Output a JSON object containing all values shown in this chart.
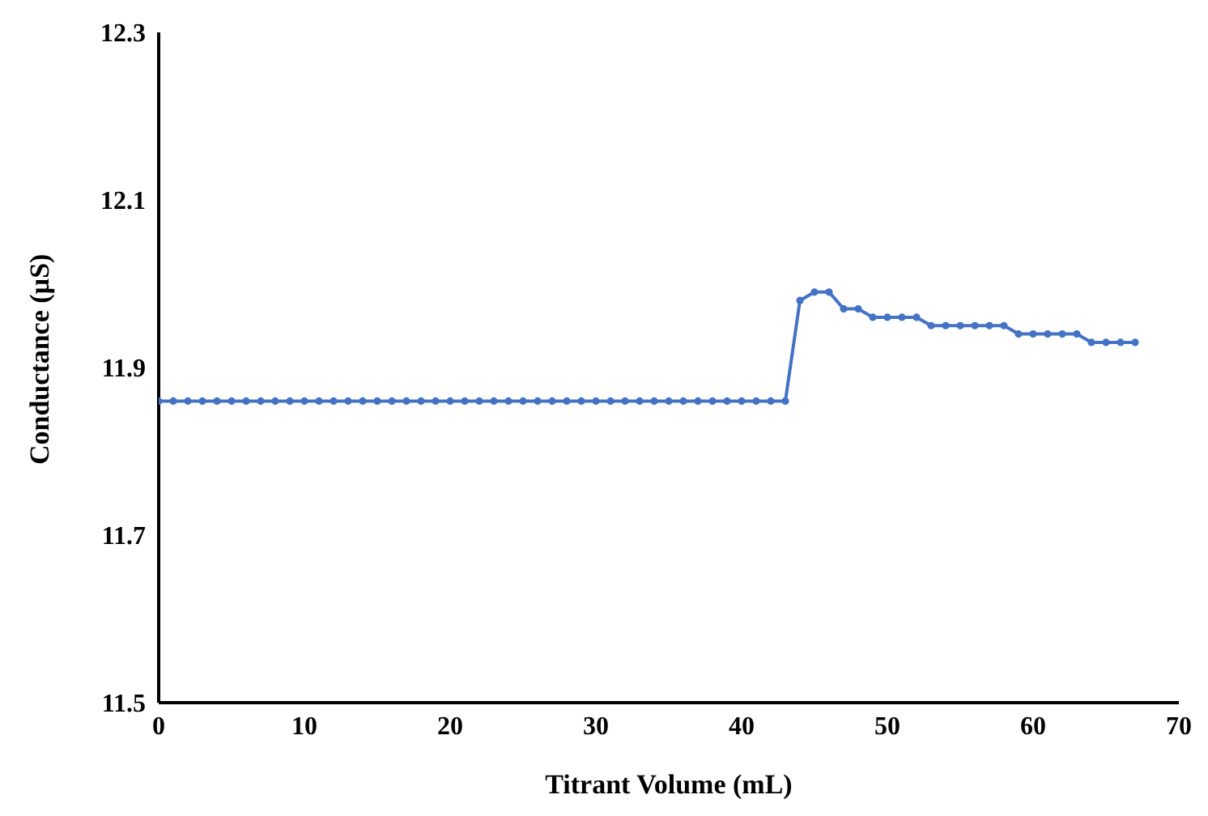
{
  "chart_data": {
    "type": "line",
    "xlabel": "Titrant Volume (mL)",
    "ylabel": "Conductance (µS)",
    "x": [
      0,
      1,
      2,
      3,
      4,
      5,
      6,
      7,
      8,
      9,
      10,
      11,
      12,
      13,
      14,
      15,
      16,
      17,
      18,
      19,
      20,
      21,
      22,
      23,
      24,
      25,
      26,
      27,
      28,
      29,
      30,
      31,
      32,
      33,
      34,
      35,
      36,
      37,
      38,
      39,
      40,
      41,
      42,
      43,
      44,
      45,
      46,
      47,
      48,
      49,
      50,
      51,
      52,
      53,
      54,
      55,
      56,
      57,
      58,
      59,
      60,
      61,
      62,
      63,
      64,
      65,
      66,
      67
    ],
    "series": [
      {
        "color": "#4472c4",
        "values": [
          11.86,
          11.86,
          11.86,
          11.86,
          11.86,
          11.86,
          11.86,
          11.86,
          11.86,
          11.86,
          11.86,
          11.86,
          11.86,
          11.86,
          11.86,
          11.86,
          11.86,
          11.86,
          11.86,
          11.86,
          11.86,
          11.86,
          11.86,
          11.86,
          11.86,
          11.86,
          11.86,
          11.86,
          11.86,
          11.86,
          11.86,
          11.86,
          11.86,
          11.86,
          11.86,
          11.86,
          11.86,
          11.86,
          11.86,
          11.86,
          11.86,
          11.86,
          11.86,
          11.86,
          11.98,
          11.99,
          11.99,
          11.97,
          11.97,
          11.96,
          11.96,
          11.96,
          11.96,
          11.95,
          11.95,
          11.95,
          11.95,
          11.95,
          11.95,
          11.94,
          11.94,
          11.94,
          11.94,
          11.94,
          11.93,
          11.93,
          11.93,
          11.93
        ]
      }
    ],
    "xlim": [
      0,
      70
    ],
    "xticks": [
      0,
      10,
      20,
      30,
      40,
      50,
      60,
      70
    ],
    "ylim": [
      11.5,
      12.3
    ],
    "yticks": [
      11.5,
      11.7,
      11.9,
      12.1,
      12.3
    ],
    "grid": false,
    "legend": false,
    "marker": "circle",
    "line_style": "solid"
  }
}
